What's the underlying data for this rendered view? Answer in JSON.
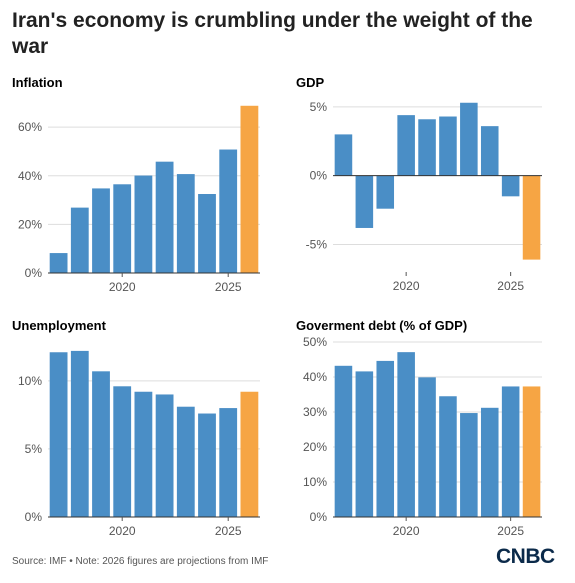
{
  "title": "Iran's economy is crumbling under the weight of the war",
  "footer": "Source: IMF • Note: 2026 figures are projections from IMF",
  "logo": "CNBC",
  "colors": {
    "actual": "#4a8ec6",
    "projection": "#f6a544",
    "subtitle": "#2f79b5",
    "axis_text": "#555555",
    "grid": "#dddddd",
    "baseline": "#333333"
  },
  "chart_data": [
    {
      "type": "bar",
      "title": "Inflation",
      "x": [
        2017,
        2018,
        2019,
        2020,
        2021,
        2022,
        2023,
        2024,
        2025,
        2026
      ],
      "values": [
        8.2,
        26.9,
        34.8,
        36.5,
        40.1,
        45.8,
        40.7,
        32.5,
        50.8,
        68.8
      ],
      "projected": [
        false,
        false,
        false,
        false,
        false,
        false,
        false,
        false,
        false,
        true
      ],
      "xticks": [
        2020,
        2025
      ],
      "xtick_labels": [
        "2020",
        "2025"
      ],
      "yticks": [
        0,
        20,
        40,
        60
      ],
      "ytick_labels": [
        "0%",
        "20%",
        "40%",
        "60%"
      ],
      "ylim": [
        0,
        72
      ],
      "grid": true
    },
    {
      "type": "bar",
      "title": "GDP",
      "x": [
        2017,
        2018,
        2019,
        2020,
        2021,
        2022,
        2023,
        2024,
        2025,
        2026
      ],
      "values": [
        3.0,
        -3.8,
        -2.4,
        4.4,
        4.1,
        4.3,
        5.3,
        3.6,
        -1.5,
        -6.1
      ],
      "projected": [
        false,
        false,
        false,
        false,
        false,
        false,
        false,
        false,
        false,
        true
      ],
      "xticks": [
        2020,
        2025
      ],
      "xtick_labels": [
        "2020",
        "2025"
      ],
      "yticks": [
        -5,
        0,
        5
      ],
      "ytick_labels": [
        "-5%",
        "0%",
        "5%"
      ],
      "ylim": [
        -7,
        5.5
      ],
      "grid": true
    },
    {
      "type": "bar",
      "title": "Unemployment",
      "x": [
        2017,
        2018,
        2019,
        2020,
        2021,
        2022,
        2023,
        2024,
        2025,
        2026
      ],
      "values": [
        12.1,
        12.2,
        10.7,
        9.6,
        9.2,
        9.0,
        8.1,
        7.6,
        8.0,
        9.2
      ],
      "projected": [
        false,
        false,
        false,
        false,
        false,
        false,
        false,
        false,
        false,
        true
      ],
      "xticks": [
        2020,
        2025
      ],
      "xtick_labels": [
        "2020",
        "2025"
      ],
      "yticks": [
        0,
        5,
        10
      ],
      "ytick_labels": [
        "0%",
        "5%",
        "10%"
      ],
      "ylim": [
        0,
        13
      ],
      "grid": true
    },
    {
      "type": "bar",
      "title": "Goverment debt (% of GDP)",
      "x": [
        2017,
        2018,
        2019,
        2020,
        2021,
        2022,
        2023,
        2024,
        2025,
        2026
      ],
      "values": [
        43.2,
        41.6,
        44.6,
        47.1,
        39.9,
        34.5,
        29.7,
        31.2,
        37.3,
        37.3
      ],
      "projected": [
        false,
        false,
        false,
        false,
        false,
        false,
        false,
        false,
        false,
        true
      ],
      "xticks": [
        2020,
        2025
      ],
      "xtick_labels": [
        "2020",
        "2025"
      ],
      "yticks": [
        0,
        10,
        20,
        30,
        40,
        50
      ],
      "ytick_labels": [
        "0%",
        "10%",
        "20%",
        "30%",
        "40%",
        "50%"
      ],
      "ylim": [
        0,
        50
      ],
      "grid": true
    }
  ]
}
